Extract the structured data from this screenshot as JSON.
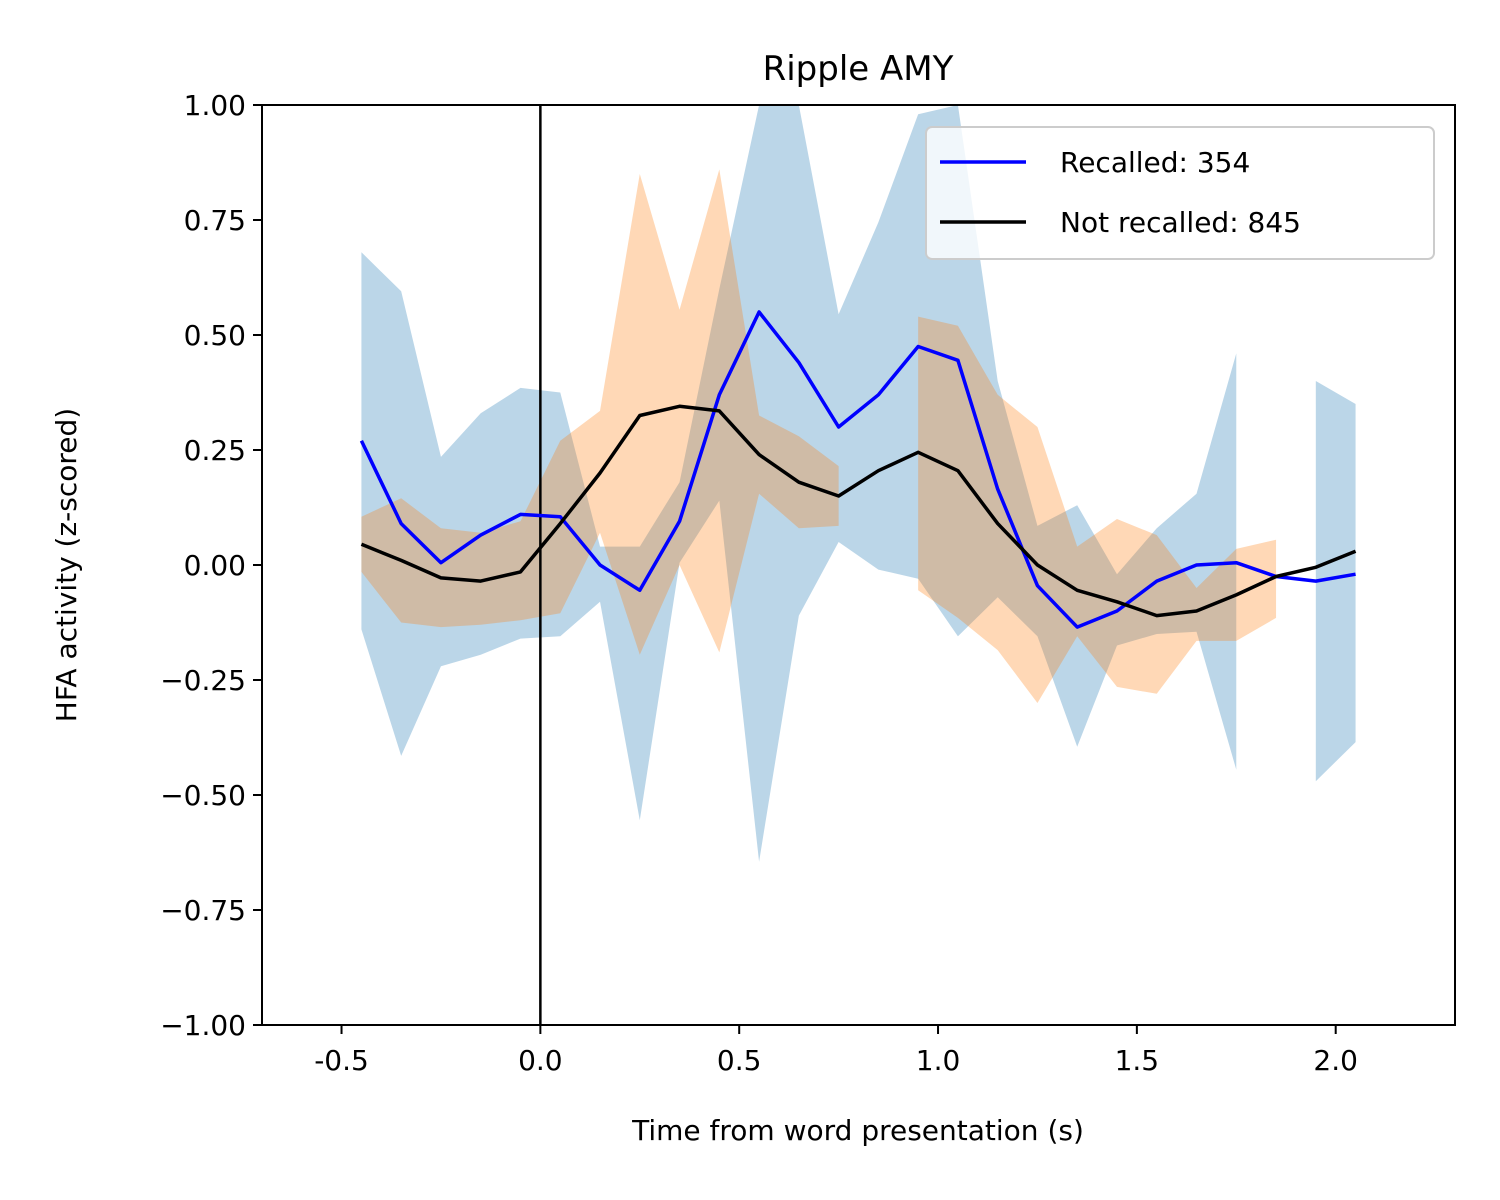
{
  "chart_data": {
    "type": "line",
    "title": "Ripple AMY",
    "xlabel": "Time from word presentation (s)",
    "ylabel": "HFA activity (z-scored)",
    "xlim": [
      -0.7,
      2.3
    ],
    "ylim": [
      -1.0,
      1.0
    ],
    "xticks": [
      -0.5,
      0.0,
      0.5,
      1.0,
      1.5,
      2.0
    ],
    "xtick_labels": [
      "-0.5",
      "0.0",
      "0.5",
      "1.0",
      "1.5",
      "2.0"
    ],
    "yticks": [
      1.0,
      0.75,
      0.5,
      0.25,
      0.0,
      -0.25,
      -0.5,
      -0.75,
      -1.0
    ],
    "ytick_labels": [
      "1.00",
      "0.75",
      "0.50",
      "0.25",
      "0.00",
      "−0.25",
      "−0.50",
      "−0.75",
      "−1.00"
    ],
    "vline_x": 0.0,
    "grid": false,
    "legend_position": "top-right",
    "x": [
      -0.45,
      -0.35,
      -0.25,
      -0.15,
      -0.05,
      0.05,
      0.15,
      0.25,
      0.35,
      0.45,
      0.55,
      0.65,
      0.75,
      0.85,
      0.95,
      1.05,
      1.15,
      1.25,
      1.35,
      1.45,
      1.55,
      1.65,
      1.75,
      1.85,
      1.95,
      2.05
    ],
    "series": [
      {
        "name": "Recalled: 354",
        "color": "#0000ff",
        "band_color": "#1f77b4",
        "values": [
          0.27,
          0.09,
          0.005,
          0.065,
          0.11,
          0.105,
          0.0,
          -0.055,
          0.095,
          0.37,
          0.55,
          0.44,
          0.3,
          0.37,
          0.475,
          0.445,
          0.165,
          -0.045,
          -0.135,
          -0.1,
          -0.035,
          0.0,
          0.005,
          -0.025,
          -0.035,
          -0.02
        ],
        "upper": [
          0.68,
          0.595,
          0.235,
          0.33,
          0.385,
          0.375,
          0.04,
          0.04,
          0.18,
          0.6,
          1.06,
          1.05,
          0.545,
          0.745,
          0.98,
          1.0,
          0.4,
          0.085,
          0.13,
          -0.02,
          0.08,
          0.155,
          0.46,
          null,
          0.4,
          0.35
        ],
        "lower": [
          -0.14,
          -0.415,
          -0.22,
          -0.195,
          -0.16,
          -0.155,
          -0.08,
          -0.555,
          0.005,
          0.14,
          -0.645,
          -0.11,
          0.05,
          -0.01,
          -0.03,
          -0.155,
          -0.07,
          -0.155,
          -0.395,
          -0.175,
          -0.15,
          -0.145,
          -0.445,
          null,
          -0.47,
          -0.385
        ]
      },
      {
        "name": "Not recalled: 845",
        "color": "#000000",
        "band_color": "#ff7f0e",
        "values": [
          0.045,
          0.01,
          -0.028,
          -0.035,
          -0.015,
          0.09,
          0.2,
          0.325,
          0.345,
          0.335,
          0.24,
          0.18,
          0.15,
          0.205,
          0.245,
          0.205,
          0.09,
          0.0,
          -0.055,
          -0.08,
          -0.11,
          -0.1,
          -0.065,
          -0.025,
          -0.005,
          0.03
        ],
        "upper": [
          0.105,
          0.145,
          0.08,
          0.07,
          0.095,
          0.27,
          0.335,
          0.85,
          0.555,
          0.86,
          0.325,
          0.28,
          0.215,
          null,
          0.54,
          0.52,
          0.37,
          0.3,
          0.04,
          0.1,
          0.065,
          -0.05,
          0.035,
          0.055,
          null,
          null
        ],
        "lower": [
          -0.015,
          -0.125,
          -0.135,
          -0.13,
          -0.12,
          -0.105,
          0.07,
          -0.195,
          0.0,
          -0.19,
          0.155,
          0.08,
          0.085,
          null,
          -0.055,
          -0.115,
          -0.185,
          -0.3,
          -0.155,
          -0.265,
          -0.28,
          -0.165,
          -0.165,
          -0.115,
          null,
          null
        ]
      }
    ]
  }
}
